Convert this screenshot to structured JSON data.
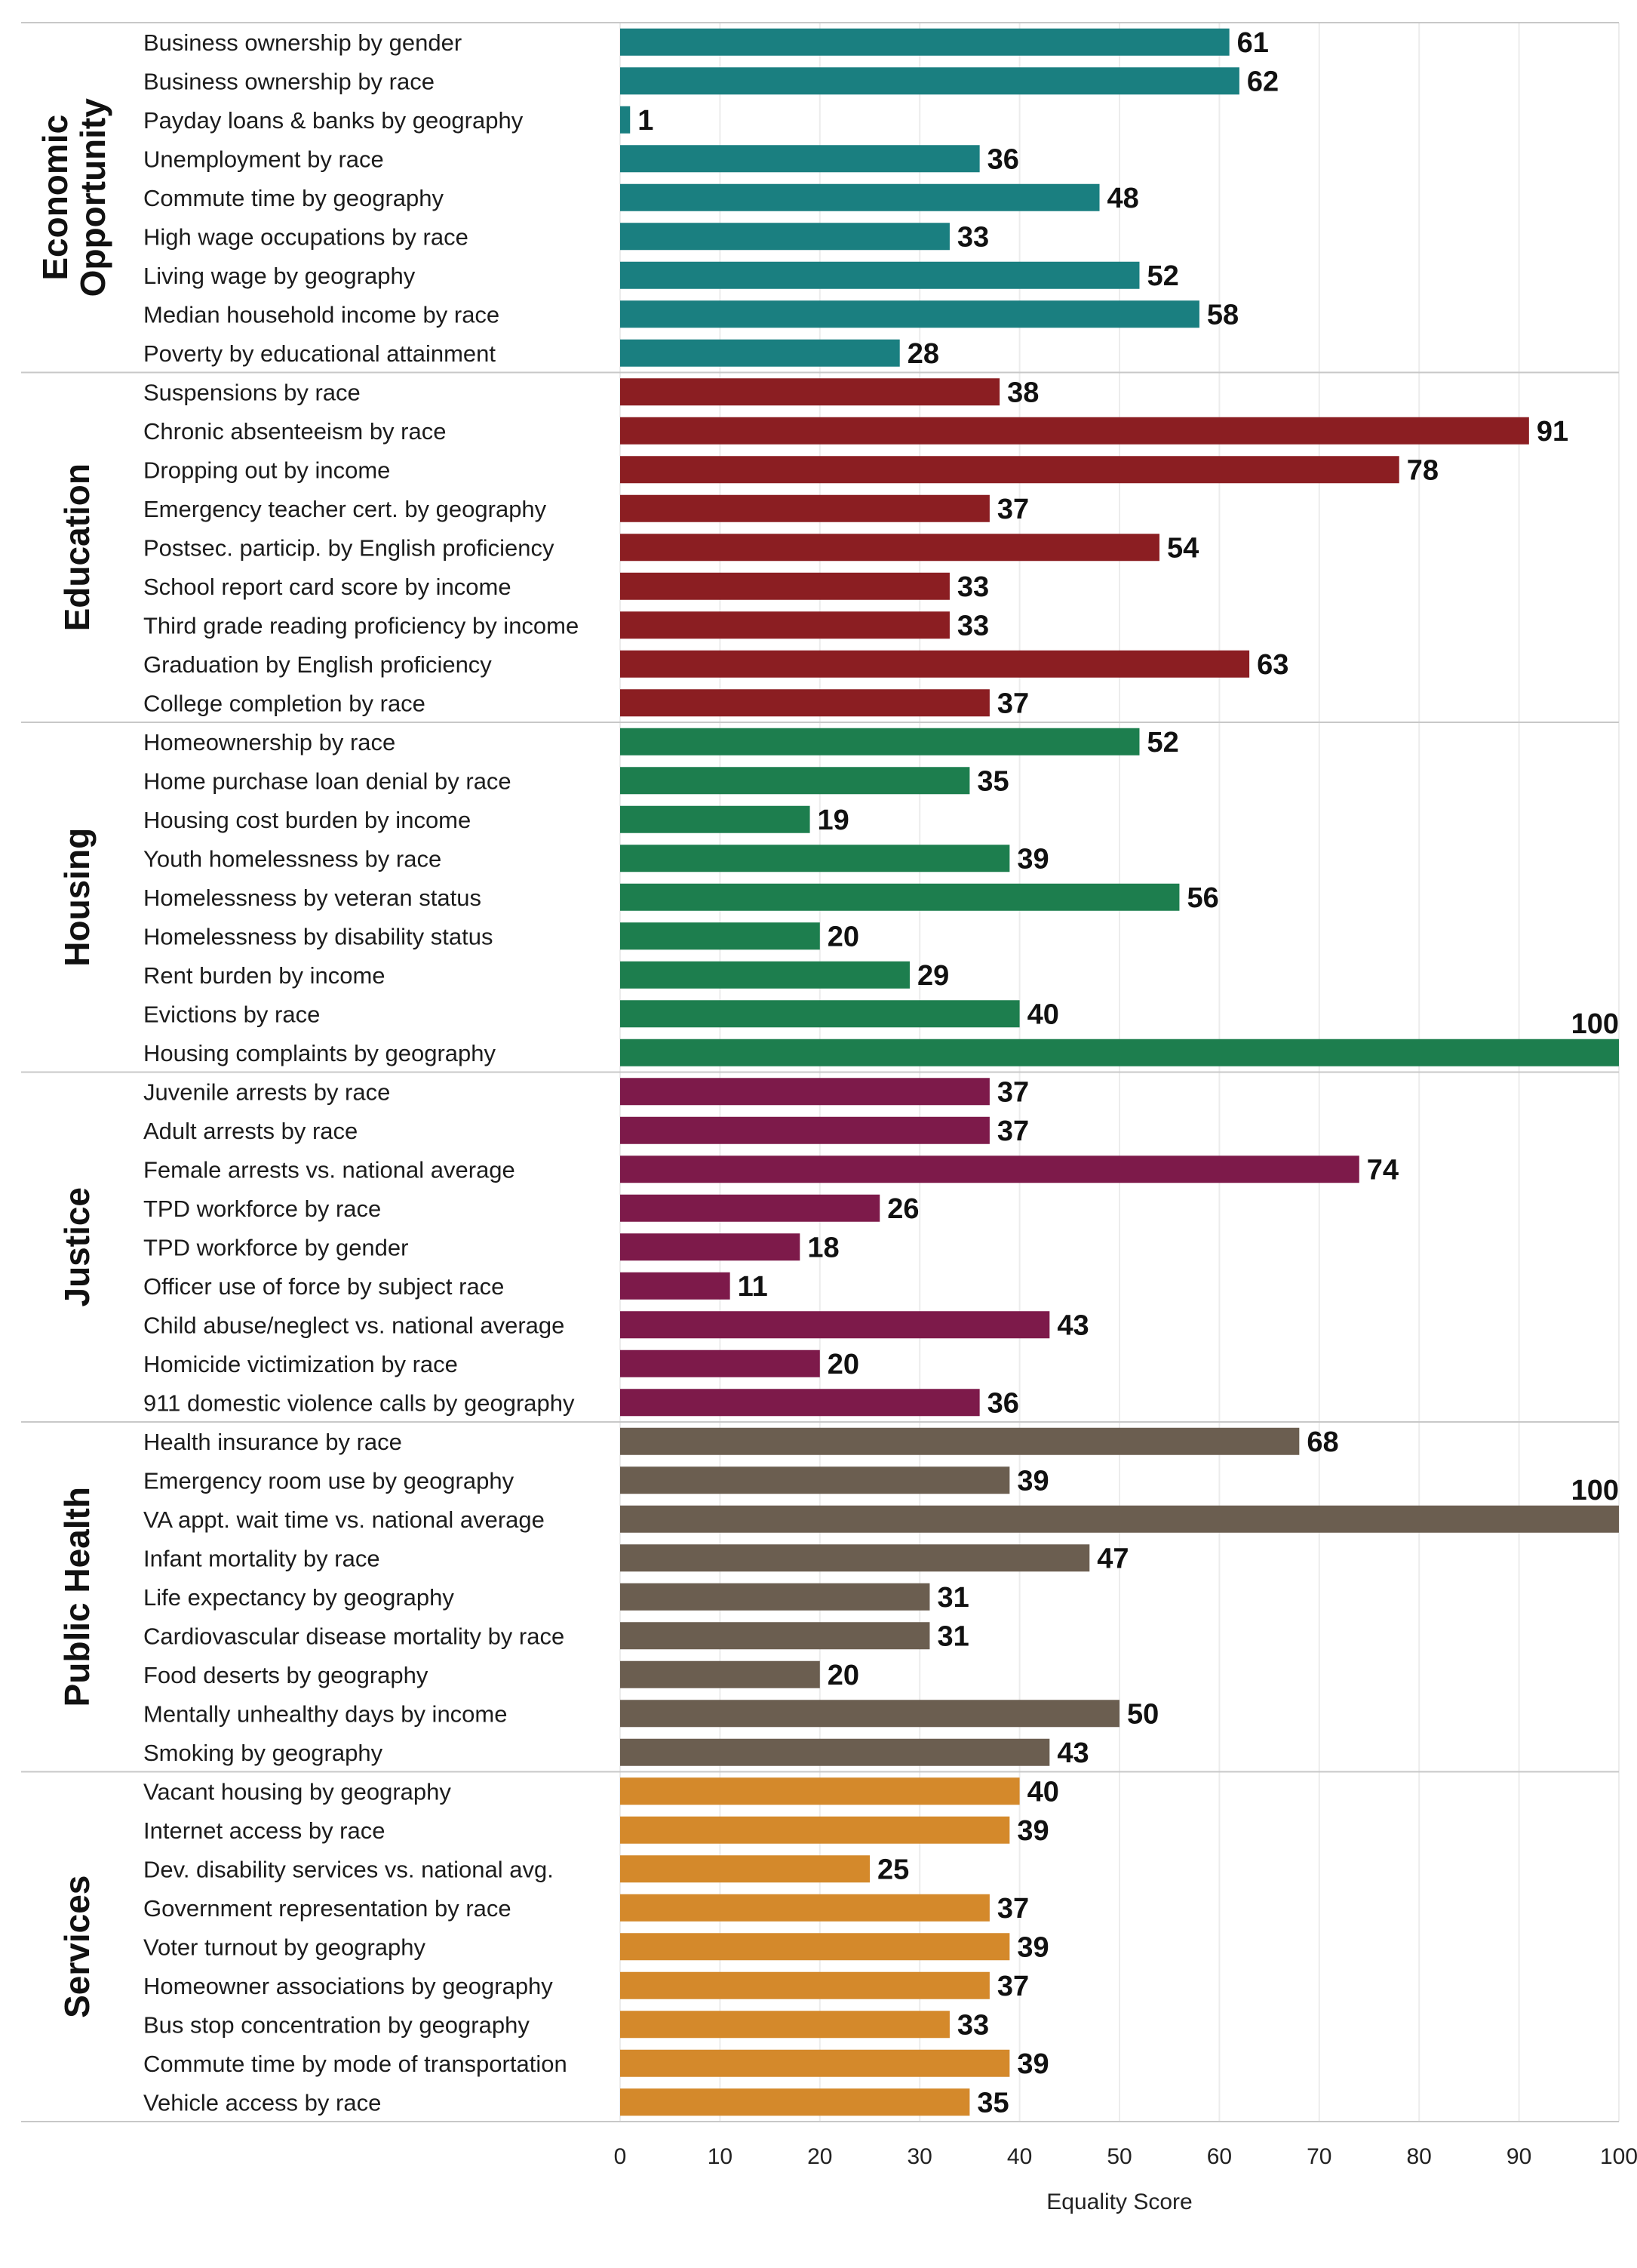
{
  "chart_data": {
    "type": "bar",
    "orientation": "horizontal",
    "xlabel": "Equality Score",
    "xlim": [
      0,
      100
    ],
    "x_ticks": [
      0,
      10,
      20,
      30,
      40,
      50,
      60,
      70,
      80,
      90,
      100
    ],
    "grid": true,
    "groups": [
      {
        "name": "Economic Opportunity",
        "title_lines": [
          "Economic",
          "Opportunity"
        ],
        "color": "#1a7f80",
        "items": [
          {
            "label": "Business ownership by gender",
            "value": 61
          },
          {
            "label": "Business ownership by race",
            "value": 62
          },
          {
            "label": "Payday loans & banks by geography",
            "value": 1
          },
          {
            "label": "Unemployment by race",
            "value": 36
          },
          {
            "label": "Commute time by geography",
            "value": 48
          },
          {
            "label": "High wage occupations by race",
            "value": 33
          },
          {
            "label": "Living wage by geography",
            "value": 52
          },
          {
            "label": "Median household income by race",
            "value": 58
          },
          {
            "label": "Poverty by educational attainment",
            "value": 28
          }
        ]
      },
      {
        "name": "Education",
        "title_lines": [
          "Education"
        ],
        "color": "#8b1e22",
        "items": [
          {
            "label": "Suspensions by race",
            "value": 38
          },
          {
            "label": "Chronic absenteeism by race",
            "value": 91
          },
          {
            "label": "Dropping out by income",
            "value": 78
          },
          {
            "label": "Emergency teacher cert. by geography",
            "value": 37
          },
          {
            "label": "Postsec. particip. by English proficiency",
            "value": 54
          },
          {
            "label": "School report card score by income",
            "value": 33
          },
          {
            "label": "Third grade reading proficiency by income",
            "value": 33
          },
          {
            "label": "Graduation by English proficiency",
            "value": 63
          },
          {
            "label": "College completion by race",
            "value": 37
          }
        ]
      },
      {
        "name": "Housing",
        "title_lines": [
          "Housing"
        ],
        "color": "#1d7e4e",
        "items": [
          {
            "label": "Homeownership by race",
            "value": 52
          },
          {
            "label": "Home purchase loan denial by race",
            "value": 35
          },
          {
            "label": "Housing cost burden by income",
            "value": 19
          },
          {
            "label": "Youth homelessness by race",
            "value": 39
          },
          {
            "label": "Homelessness by veteran status",
            "value": 56
          },
          {
            "label": "Homelessness by disability status",
            "value": 20
          },
          {
            "label": "Rent burden by income",
            "value": 29
          },
          {
            "label": "Evictions by race",
            "value": 40
          },
          {
            "label": "Housing complaints by geography",
            "value": 100
          }
        ]
      },
      {
        "name": "Justice",
        "title_lines": [
          "Justice"
        ],
        "color": "#7d1a4a",
        "items": [
          {
            "label": "Juvenile arrests by race",
            "value": 37
          },
          {
            "label": "Adult arrests by race",
            "value": 37
          },
          {
            "label": "Female arrests vs. national average",
            "value": 74
          },
          {
            "label": "TPD workforce by race",
            "value": 26
          },
          {
            "label": "TPD workforce by gender",
            "value": 18
          },
          {
            "label": "Officer use of force by subject race",
            "value": 11
          },
          {
            "label": "Child abuse/neglect vs. national average",
            "value": 43
          },
          {
            "label": "Homicide victimization by race",
            "value": 20
          },
          {
            "label": "911 domestic violence calls by geography",
            "value": 36
          }
        ]
      },
      {
        "name": "Public Health",
        "title_lines": [
          "Public Health"
        ],
        "color": "#6b5e50",
        "items": [
          {
            "label": "Health insurance by race",
            "value": 68
          },
          {
            "label": "Emergency room use by geography",
            "value": 39
          },
          {
            "label": "VA appt. wait time vs. national average",
            "value": 100
          },
          {
            "label": "Infant mortality by race",
            "value": 47
          },
          {
            "label": "Life expectancy by geography",
            "value": 31
          },
          {
            "label": "Cardiovascular disease mortality by race",
            "value": 31
          },
          {
            "label": "Food deserts by geography",
            "value": 20
          },
          {
            "label": "Mentally unhealthy days by income",
            "value": 50
          },
          {
            "label": "Smoking by geography",
            "value": 43
          }
        ]
      },
      {
        "name": "Services",
        "title_lines": [
          "Services"
        ],
        "color": "#d4892b",
        "items": [
          {
            "label": "Vacant housing by geography",
            "value": 40
          },
          {
            "label": "Internet access by race",
            "value": 39
          },
          {
            "label": "Dev. disability services vs. national avg.",
            "value": 25
          },
          {
            "label": "Government representation by race",
            "value": 37
          },
          {
            "label": "Voter turnout by geography",
            "value": 39
          },
          {
            "label": "Homeowner associations by geography",
            "value": 37
          },
          {
            "label": "Bus stop concentration by geography",
            "value": 33
          },
          {
            "label": "Commute time by mode of transportation",
            "value": 39
          },
          {
            "label": "Vehicle access by race",
            "value": 35
          }
        ]
      }
    ]
  }
}
